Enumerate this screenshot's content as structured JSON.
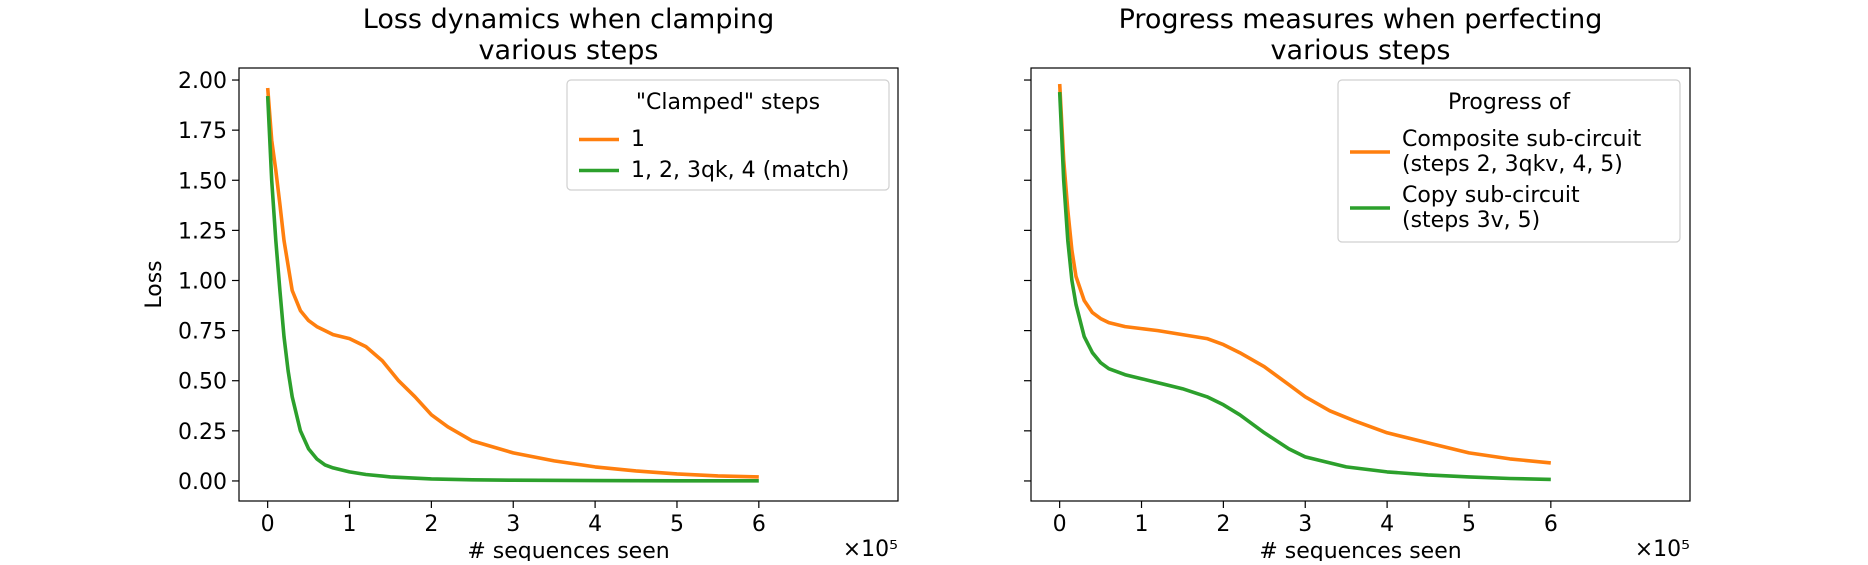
{
  "chart_data": [
    {
      "type": "line",
      "title": [
        "Loss dynamics when clamping",
        "various steps"
      ],
      "xlabel": "# sequences seen",
      "ylabel": "Loss",
      "x_offset_text": "×10⁵",
      "xlim": [
        -0.35,
        7.7
      ],
      "ylim": [
        -0.1,
        2.06
      ],
      "xticks": [
        0,
        1,
        2,
        3,
        4,
        5,
        6
      ],
      "xtick_labels": [
        "0",
        "1",
        "2",
        "3",
        "4",
        "5",
        "6"
      ],
      "yticks": [
        0,
        0.25,
        0.5,
        0.75,
        1.0,
        1.25,
        1.5,
        1.75,
        2.0
      ],
      "ytick_labels": [
        "0.00",
        "0.25",
        "0.50",
        "0.75",
        "1.00",
        "1.25",
        "1.50",
        "1.75",
        "2.00"
      ],
      "show_yticklabels": true,
      "grid": false,
      "legend": {
        "title": "\"Clamped\" steps",
        "placement": "top-right"
      },
      "series": [
        {
          "name": "1",
          "color": "#ff7f0e",
          "x": [
            0,
            0.05,
            0.1,
            0.15,
            0.2,
            0.3,
            0.4,
            0.5,
            0.6,
            0.7,
            0.8,
            1.0,
            1.2,
            1.4,
            1.6,
            1.8,
            2.0,
            2.2,
            2.5,
            3.0,
            3.5,
            4.0,
            4.5,
            5.0,
            5.5,
            6.0
          ],
          "y": [
            1.96,
            1.7,
            1.55,
            1.38,
            1.2,
            0.95,
            0.85,
            0.8,
            0.77,
            0.75,
            0.73,
            0.71,
            0.67,
            0.6,
            0.5,
            0.42,
            0.33,
            0.27,
            0.2,
            0.14,
            0.1,
            0.07,
            0.05,
            0.035,
            0.025,
            0.02
          ]
        },
        {
          "name": "1, 2, 3qk, 4 (match)",
          "color": "#2ca02c",
          "x": [
            0,
            0.05,
            0.1,
            0.15,
            0.2,
            0.25,
            0.3,
            0.4,
            0.5,
            0.6,
            0.7,
            0.8,
            1.0,
            1.2,
            1.5,
            2.0,
            2.5,
            3.0,
            4.0,
            5.0,
            6.0
          ],
          "y": [
            1.92,
            1.5,
            1.2,
            0.95,
            0.72,
            0.55,
            0.42,
            0.25,
            0.16,
            0.11,
            0.08,
            0.065,
            0.045,
            0.032,
            0.02,
            0.01,
            0.006,
            0.004,
            0.002,
            0.001,
            0.001
          ]
        }
      ]
    },
    {
      "type": "line",
      "title": [
        "Progress measures when perfecting",
        "various steps"
      ],
      "xlabel": "# sequences seen",
      "ylabel": "",
      "x_offset_text": "×10⁵",
      "xlim": [
        -0.35,
        7.7
      ],
      "ylim": [
        -0.1,
        2.06
      ],
      "xticks": [
        0,
        1,
        2,
        3,
        4,
        5,
        6
      ],
      "xtick_labels": [
        "0",
        "1",
        "2",
        "3",
        "4",
        "5",
        "6"
      ],
      "yticks": [
        0,
        0.25,
        0.5,
        0.75,
        1.0,
        1.25,
        1.5,
        1.75,
        2.0
      ],
      "ytick_labels": [],
      "show_yticklabels": false,
      "grid": false,
      "legend": {
        "title": "Progress of",
        "placement": "top-right"
      },
      "series": [
        {
          "name": [
            "Composite sub-circuit",
            "(steps 2, 3qkv, 4, 5)"
          ],
          "color": "#ff7f0e",
          "x": [
            0,
            0.05,
            0.1,
            0.15,
            0.2,
            0.3,
            0.4,
            0.5,
            0.6,
            0.8,
            1.0,
            1.2,
            1.5,
            1.8,
            2.0,
            2.2,
            2.5,
            2.8,
            3.0,
            3.3,
            3.6,
            4.0,
            4.5,
            5.0,
            5.5,
            6.0
          ],
          "y": [
            1.98,
            1.6,
            1.35,
            1.15,
            1.02,
            0.9,
            0.84,
            0.81,
            0.79,
            0.77,
            0.76,
            0.75,
            0.73,
            0.71,
            0.68,
            0.64,
            0.57,
            0.48,
            0.42,
            0.35,
            0.3,
            0.24,
            0.19,
            0.14,
            0.11,
            0.09
          ]
        },
        {
          "name": [
            "Copy sub-circuit",
            "(steps 3v, 5)"
          ],
          "color": "#2ca02c",
          "x": [
            0,
            0.05,
            0.1,
            0.15,
            0.2,
            0.3,
            0.4,
            0.5,
            0.6,
            0.8,
            1.0,
            1.2,
            1.5,
            1.8,
            2.0,
            2.2,
            2.5,
            2.8,
            3.0,
            3.5,
            4.0,
            4.5,
            5.0,
            5.5,
            6.0
          ],
          "y": [
            1.94,
            1.5,
            1.2,
            1.0,
            0.88,
            0.72,
            0.64,
            0.59,
            0.56,
            0.53,
            0.51,
            0.49,
            0.46,
            0.42,
            0.38,
            0.33,
            0.24,
            0.16,
            0.12,
            0.07,
            0.045,
            0.03,
            0.02,
            0.012,
            0.008
          ]
        }
      ]
    }
  ]
}
